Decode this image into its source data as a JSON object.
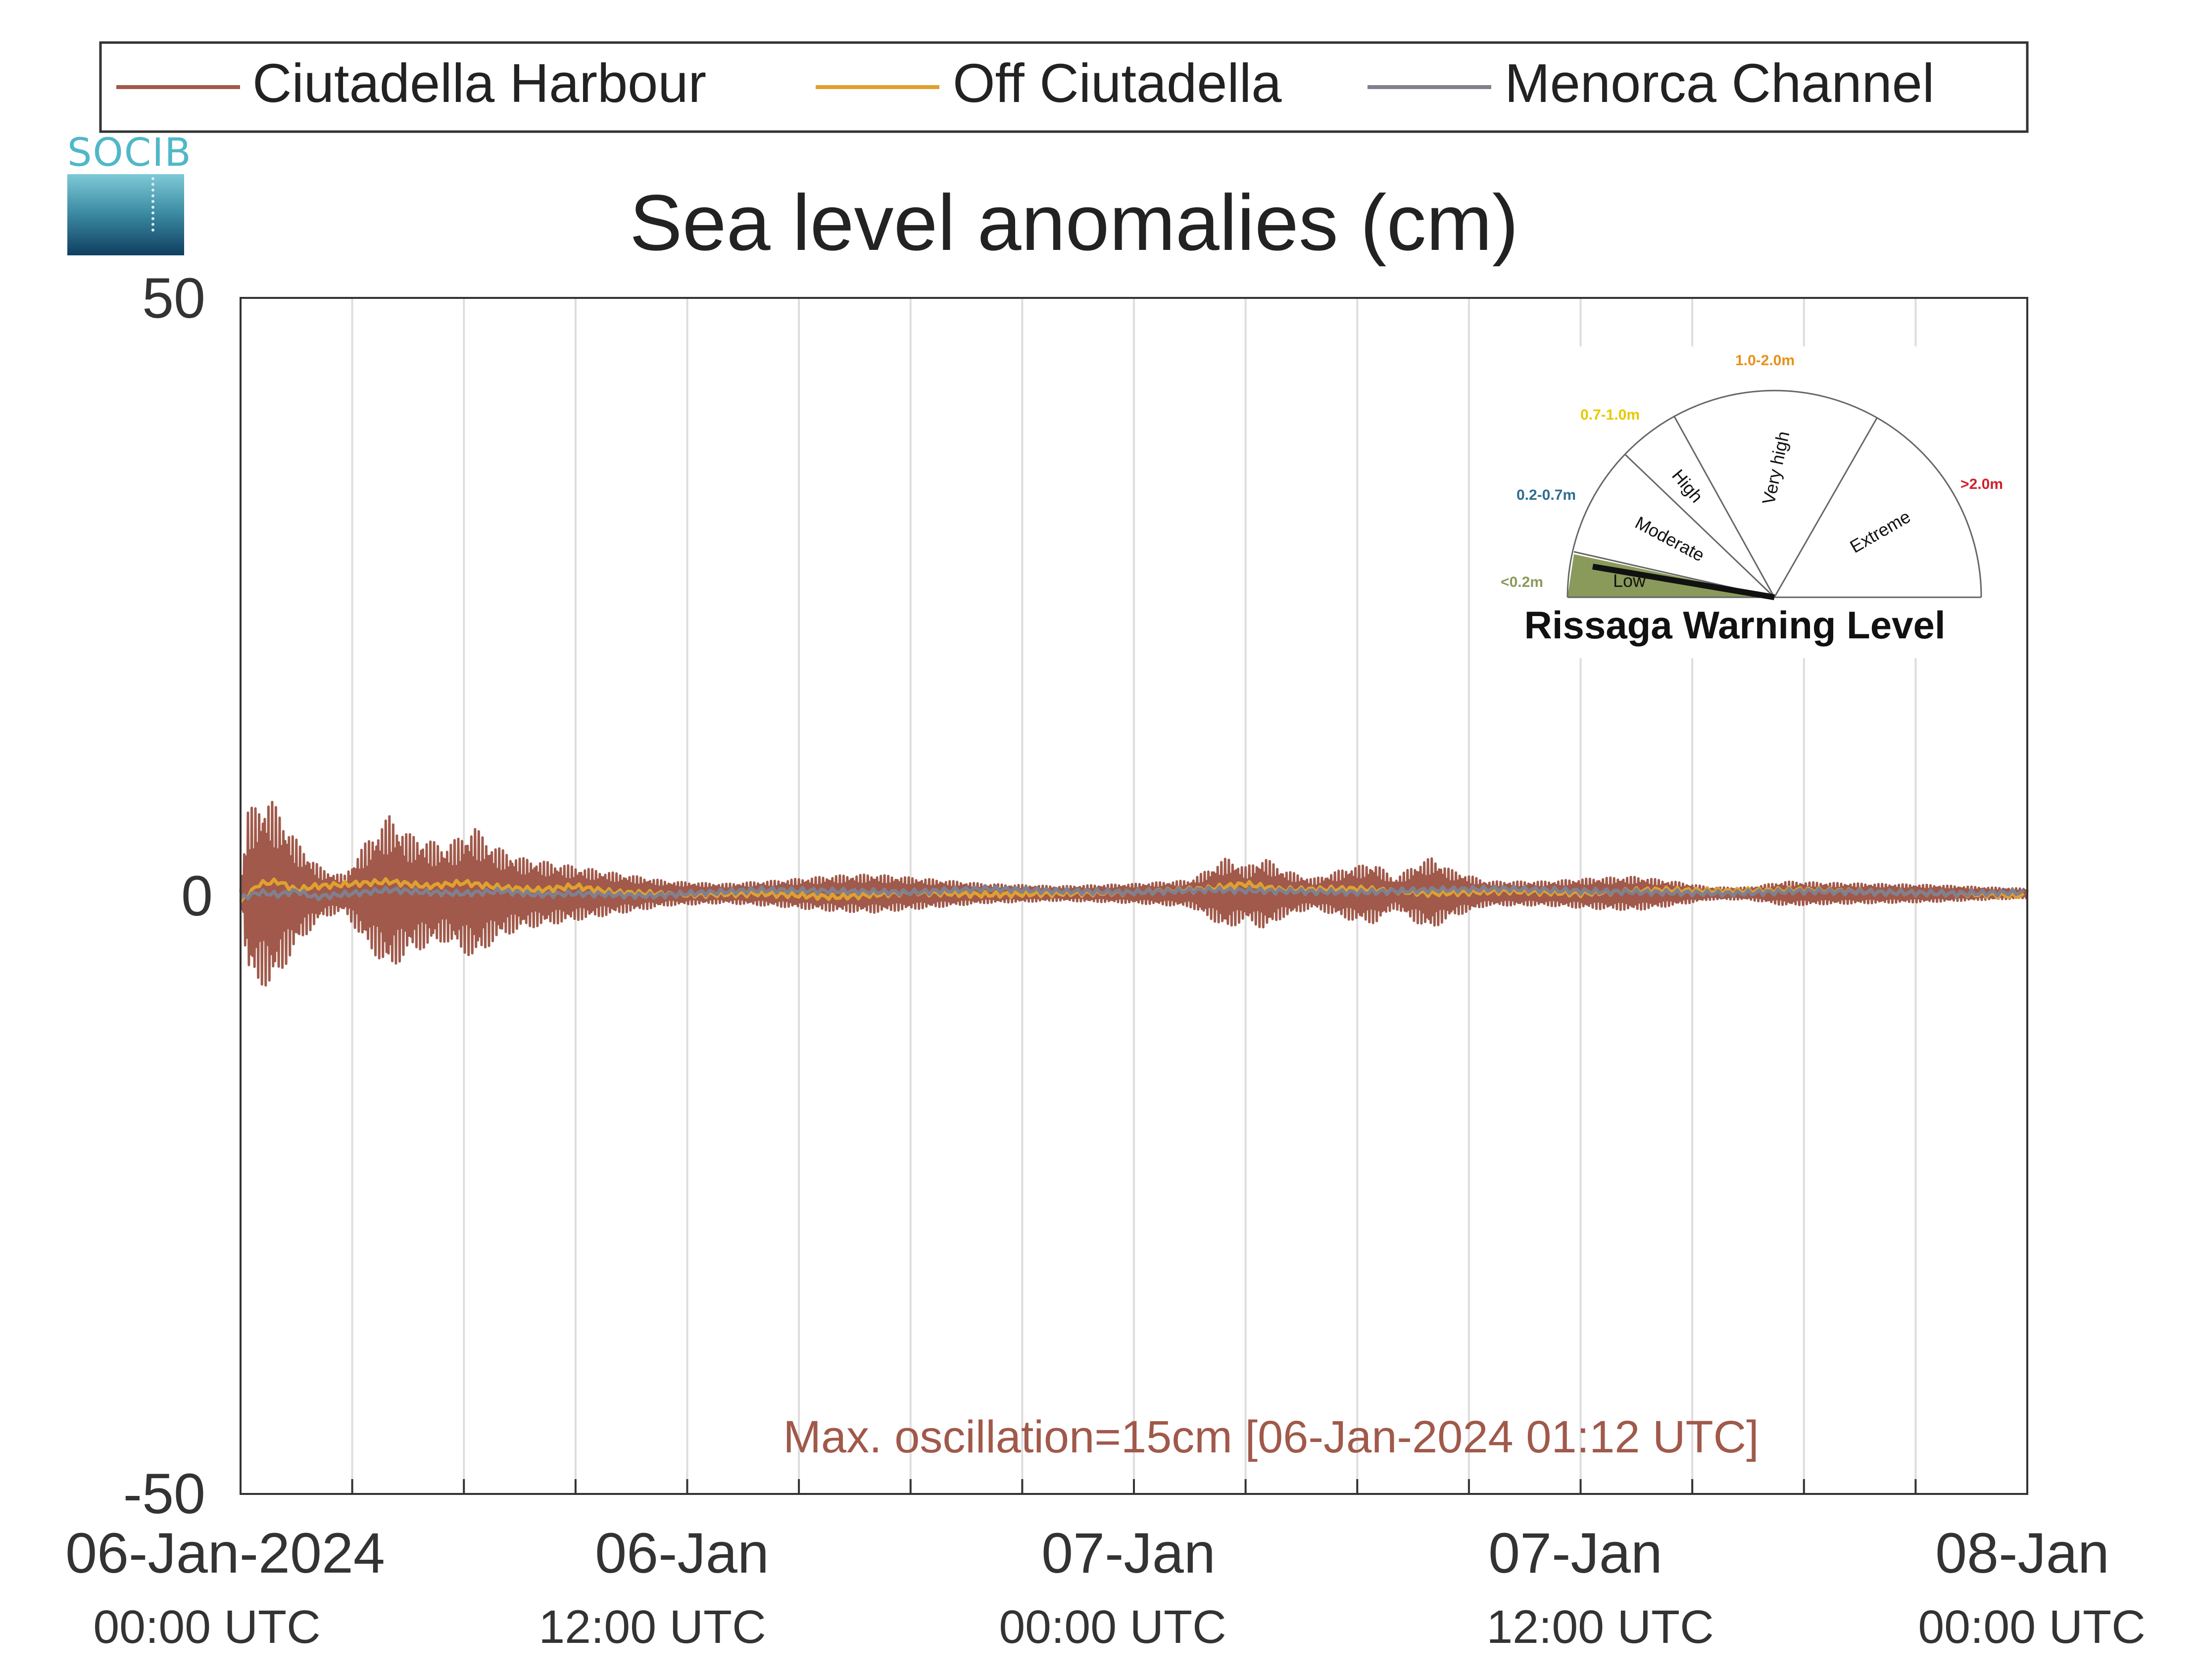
{
  "logo": {
    "text": "SOCIB"
  },
  "chart_data": {
    "type": "line",
    "title": "Sea level anomalies (cm)",
    "ylim": [
      -50,
      50
    ],
    "yticks": [
      "50",
      "0",
      "-50"
    ],
    "xlim_hours": [
      0,
      48
    ],
    "x_unit": "hours since 06-Jan-2024 00:00 UTC",
    "xticks": [
      {
        "hour": 0,
        "date": "06-Jan-2024",
        "time": "00:00 UTC"
      },
      {
        "hour": 12,
        "date": "06-Jan",
        "time": "12:00 UTC"
      },
      {
        "hour": 24,
        "date": "07-Jan",
        "time": "00:00 UTC"
      },
      {
        "hour": 36,
        "date": "07-Jan",
        "time": "12:00 UTC"
      },
      {
        "hour": 48,
        "date": "08-Jan",
        "time": "00:00 UTC"
      }
    ],
    "grid": true,
    "legend_position": "top",
    "annotation": "Max. oscillation=15cm [06-Jan-2024 01:12 UTC]",
    "series": [
      {
        "name": "Ciutadella Harbour",
        "color": "#a0594a",
        "oscillating": true,
        "envelope": [
          [
            0,
            0.5
          ],
          [
            0.2,
            7
          ],
          [
            0.8,
            8
          ],
          [
            1.2,
            6
          ],
          [
            1.6,
            4
          ],
          [
            2.2,
            2
          ],
          [
            2.8,
            1.5
          ],
          [
            3.3,
            4
          ],
          [
            4.0,
            6.5
          ],
          [
            4.5,
            5
          ],
          [
            5.0,
            4.5
          ],
          [
            5.5,
            4
          ],
          [
            6.3,
            5.5
          ],
          [
            6.8,
            4
          ],
          [
            7.5,
            3
          ],
          [
            8.5,
            2.5
          ],
          [
            9.5,
            2
          ],
          [
            10.5,
            1.5
          ],
          [
            11.5,
            1
          ],
          [
            13,
            0.8
          ],
          [
            14.5,
            1.1
          ],
          [
            16,
            1.5
          ],
          [
            17,
            1.6
          ],
          [
            18.5,
            1.2
          ],
          [
            20,
            0.8
          ],
          [
            22,
            0.6
          ],
          [
            24,
            0.8
          ],
          [
            25.5,
            1.1
          ],
          [
            26,
            2
          ],
          [
            26.5,
            3
          ],
          [
            27,
            2.2
          ],
          [
            27.5,
            3
          ],
          [
            28,
            2
          ],
          [
            28.8,
            1.2
          ],
          [
            29.8,
            2.2
          ],
          [
            30.5,
            2.5
          ],
          [
            31,
            1.2
          ],
          [
            31.5,
            2.3
          ],
          [
            32,
            3
          ],
          [
            32.5,
            2
          ],
          [
            33.5,
            1
          ],
          [
            35,
            1
          ],
          [
            36.5,
            1.3
          ],
          [
            37.5,
            1.4
          ],
          [
            38.5,
            1
          ],
          [
            39.5,
            0.5
          ],
          [
            40.5,
            0.5
          ],
          [
            41.5,
            1
          ],
          [
            42.5,
            0.9
          ],
          [
            44,
            0.8
          ],
          [
            45.5,
            0.7
          ],
          [
            47,
            0.5
          ],
          [
            48,
            0.4
          ]
        ]
      },
      {
        "name": "Off Ciutadella",
        "color": "#e0a030",
        "oscillating": false,
        "x": [
          0,
          0.5,
          1,
          1.5,
          2,
          3,
          4,
          5,
          6,
          7,
          8,
          9,
          10,
          11,
          12,
          14,
          16,
          18,
          20,
          22,
          24,
          26,
          27,
          28,
          30,
          32,
          34,
          36,
          38,
          40,
          42,
          44,
          46,
          48
        ],
        "y": [
          -0.5,
          1,
          1.2,
          0.5,
          0.8,
          1,
          1.2,
          0.8,
          1.1,
          0.7,
          0.5,
          0.8,
          0.3,
          0.2,
          0.1,
          0.2,
          -0.1,
          0.3,
          0.1,
          0.2,
          0.3,
          0.6,
          1.0,
          0.5,
          0.6,
          0.2,
          0.4,
          0.2,
          0.5,
          0.4,
          0.5,
          0.3,
          0.2,
          0.0
        ]
      },
      {
        "name": "Menorca Channel",
        "color": "#80808f",
        "oscillating": false,
        "x": [
          0,
          0.5,
          1,
          1.5,
          2,
          3,
          4,
          5,
          6,
          7,
          8,
          9,
          10,
          11,
          12,
          14,
          16,
          18,
          20,
          22,
          24,
          26,
          28,
          30,
          32,
          34,
          36,
          38,
          40,
          42,
          44,
          46,
          48
        ],
        "y": [
          -0.2,
          0.3,
          0.1,
          0.4,
          -0.1,
          0.2,
          0.5,
          0.3,
          0.2,
          0.4,
          0.1,
          0.2,
          0.1,
          0.0,
          0.2,
          0.5,
          0.4,
          0.3,
          0.6,
          0.4,
          0.3,
          0.5,
          0.4,
          0.3,
          0.5,
          0.6,
          0.4,
          0.3,
          0.2,
          0.4,
          0.3,
          0.2,
          0.3
        ]
      }
    ]
  },
  "warning_gauge": {
    "title": "Rissaga Warning Level",
    "sectors": [
      {
        "label": "Low",
        "range": "<0.2m",
        "color": "#8a9a5b"
      },
      {
        "label": "Moderate",
        "range": "0.2-0.7m",
        "color": "#2e6e8e"
      },
      {
        "label": "High",
        "range": "0.7-1.0m",
        "color": "#e8c800"
      },
      {
        "label": "Very high",
        "range": "1.0-2.0m",
        "color": "#e8901a"
      },
      {
        "label": "Extreme",
        "range": ">2.0m",
        "color": "#d0202a"
      }
    ],
    "active_level": "Low"
  }
}
